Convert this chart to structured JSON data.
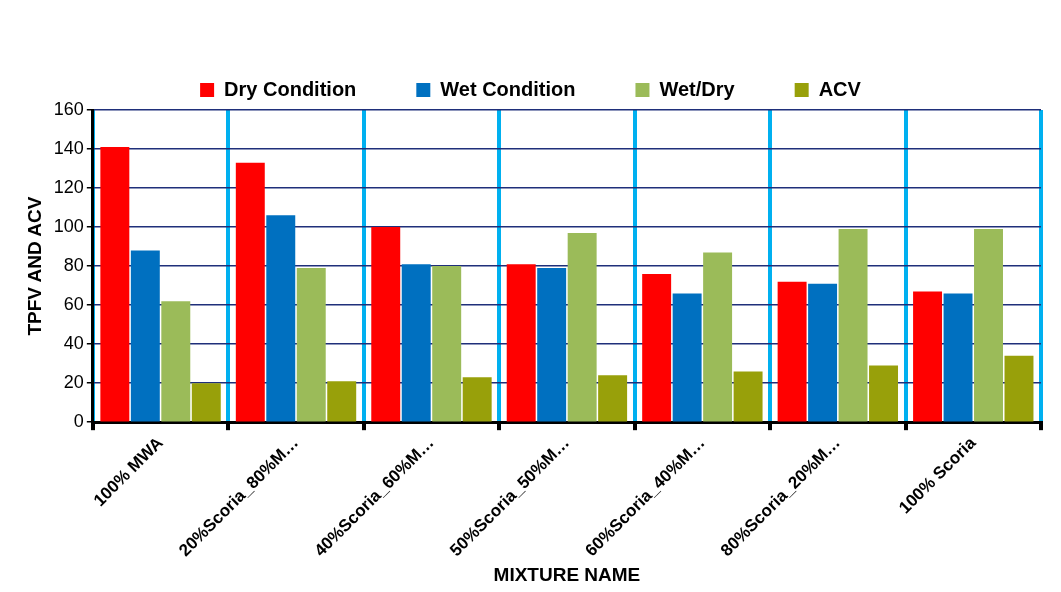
{
  "chart_data": {
    "type": "bar",
    "xlabel": "MIXTURE NAME",
    "ylabel": "TPFV AND ACV",
    "categories": [
      "100% MWA",
      "20%Scoria_80%M…",
      "40%Scoria_60%M…",
      "50%Scoria_50%M…",
      "60%Scoria_40%M…",
      "80%Scoria_20%M…",
      "100% Scoria"
    ],
    "series": [
      {
        "name": "Dry Condition",
        "color": "#ff0000",
        "values": [
          141,
          133,
          100,
          81,
          76,
          72,
          67
        ]
      },
      {
        "name": "Wet Condition",
        "color": "#0070c0",
        "values": [
          88,
          106,
          81,
          79,
          66,
          71,
          66
        ]
      },
      {
        "name": "Wet/Dry",
        "color": "#9bbb59",
        "values": [
          62,
          79,
          80,
          97,
          87,
          99,
          99
        ]
      },
      {
        "name": "ACV",
        "color": "#98a00a",
        "values": [
          20,
          21,
          23,
          24,
          26,
          29,
          34
        ]
      }
    ],
    "ylim": [
      0,
      160
    ],
    "yticks": [
      0,
      20,
      40,
      60,
      80,
      100,
      120,
      140,
      160
    ],
    "grid": true,
    "legend": "top"
  }
}
